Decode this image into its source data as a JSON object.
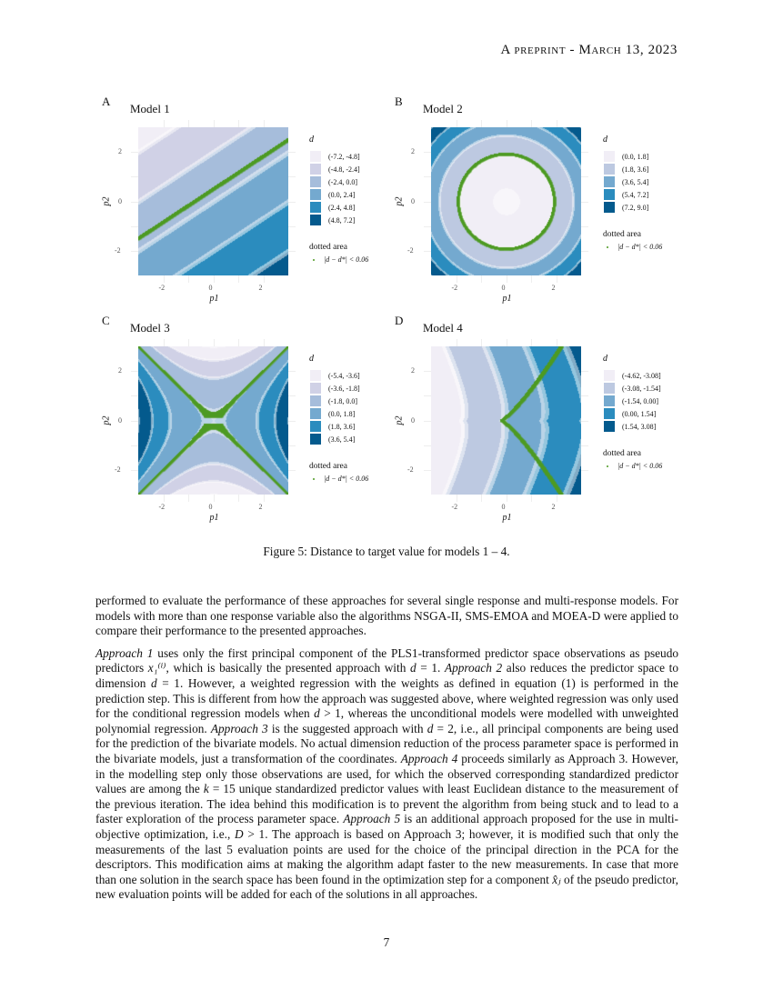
{
  "header": "A preprint - March 13, 2023",
  "figure": {
    "caption": "Figure 5: Distance to target value for models 1 – 4."
  },
  "chart_data": [
    {
      "type": "heatmap",
      "panel": "A",
      "title": "Model 1",
      "xlabel": "p1",
      "ylabel": "p2",
      "xlim": [
        -3,
        3
      ],
      "ylim": [
        -3,
        3
      ],
      "xticks": [
        "-2",
        "0",
        "2"
      ],
      "yticks": [
        "2",
        "0",
        "-2"
      ],
      "legend_title": "d",
      "bins": [
        "(-7.2, -4.8]",
        "(-4.8, -2.4]",
        "(-2.4, 0.0]",
        "(0.0, 2.4]",
        "(2.4, 4.8]",
        "(4.8, 7.2]"
      ],
      "colors": [
        "#f1eef6",
        "#d0d1e6",
        "#a6bddb",
        "#74a9cf",
        "#2b8cbe",
        "#045a8d"
      ],
      "dotted_title": "dotted area",
      "dotted_label": "|d − d*| < 0.06",
      "dot_color": "#4d9a22",
      "grid": true,
      "legend_placement": "right"
    },
    {
      "type": "heatmap",
      "panel": "B",
      "title": "Model 2",
      "xlabel": "p1",
      "ylabel": "p2",
      "xlim": [
        -3,
        3
      ],
      "ylim": [
        -3,
        3
      ],
      "xticks": [
        "-2",
        "0",
        "2"
      ],
      "yticks": [
        "2",
        "0",
        "-2"
      ],
      "legend_title": "d",
      "bins": [
        "(0.0, 1.8]",
        "(1.8, 3.6]",
        "(3.6, 5.4]",
        "(5.4, 7.2]",
        "(7.2, 9.0]"
      ],
      "colors": [
        "#f1eef6",
        "#bdc9e1",
        "#74a9cf",
        "#2b8cbe",
        "#045a8d"
      ],
      "dotted_title": "dotted area",
      "dotted_label": "|d − d*| < 0.06",
      "dot_color": "#4d9a22",
      "grid": true,
      "legend_placement": "right"
    },
    {
      "type": "heatmap",
      "panel": "C",
      "title": "Model 3",
      "xlabel": "p1",
      "ylabel": "p2",
      "xlim": [
        -3,
        3
      ],
      "ylim": [
        -3,
        3
      ],
      "xticks": [
        "-2",
        "0",
        "2"
      ],
      "yticks": [
        "2",
        "0",
        "-2"
      ],
      "legend_title": "d",
      "bins": [
        "(-5.4, -3.6]",
        "(-3.6, -1.8]",
        "(-1.8, 0.0]",
        "(0.0, 1.8]",
        "(1.8, 3.6]",
        "(3.6, 5.4]"
      ],
      "colors": [
        "#f1eef6",
        "#d0d1e6",
        "#a6bddb",
        "#74a9cf",
        "#2b8cbe",
        "#045a8d"
      ],
      "dotted_title": "dotted area",
      "dotted_label": "|d − d*| < 0.06",
      "dot_color": "#4d9a22",
      "grid": true,
      "legend_placement": "right"
    },
    {
      "type": "heatmap",
      "panel": "D",
      "title": "Model 4",
      "xlabel": "p1",
      "ylabel": "p2",
      "xlim": [
        -3,
        3
      ],
      "ylim": [
        -3,
        3
      ],
      "xticks": [
        "-2",
        "0",
        "2"
      ],
      "yticks": [
        "2",
        "0",
        "-2"
      ],
      "legend_title": "d",
      "bins": [
        "(-4.62, -3.08]",
        "(-3.08, -1.54]",
        "(-1.54, 0.00]",
        "(0.00, 1.54]",
        "(1.54, 3.08]"
      ],
      "colors": [
        "#f1eef6",
        "#bdc9e1",
        "#74a9cf",
        "#2b8cbe",
        "#045a8d"
      ],
      "dotted_title": "dotted area",
      "dotted_label": "|d − d*| < 0.06",
      "dot_color": "#4d9a22",
      "grid": true,
      "legend_placement": "right"
    }
  ],
  "body": {
    "paragraphs": [
      [
        {
          "t": "performed to evaluate the performance of these approaches for several single response and multi-response models. For models with more than one response variable also the algorithms NSGA-II, SMS-EMOA and MOEA-D were applied to compare their performance to the presented approaches."
        }
      ],
      [
        {
          "t": "Approach 1",
          "i": true
        },
        {
          "t": " uses only the first principal component of the PLS1-transformed predictor space observations as pseudo predictors "
        },
        {
          "t": "x₁⁽ⁱ⁾",
          "i": true
        },
        {
          "t": ", which is basically the presented approach with "
        },
        {
          "t": "d",
          "i": true
        },
        {
          "t": " = 1. "
        },
        {
          "t": "Approach 2",
          "i": true
        },
        {
          "t": " also reduces the predictor space to dimension "
        },
        {
          "t": "d",
          "i": true
        },
        {
          "t": " = 1.  However, a weighted regression with the weights as defined in equation (1) is performed in the prediction step.  This is different from how the approach was suggested above, where weighted regression was only used for the conditional regression models when "
        },
        {
          "t": "d",
          "i": true
        },
        {
          "t": " > 1, whereas the unconditional models were modelled with unweighted polynomial regression. "
        },
        {
          "t": "Approach 3",
          "i": true
        },
        {
          "t": " is the suggested approach with "
        },
        {
          "t": "d",
          "i": true
        },
        {
          "t": " = 2, i.e., all principal components are being used for the prediction of the bivariate models. No actual dimension reduction of the process parameter space is performed in the bivariate models, just a transformation of the coordinates. "
        },
        {
          "t": "Approach 4",
          "i": true
        },
        {
          "t": " proceeds similarly as Approach 3. However, in the modelling step only those observations are used, for which the observed corresponding standardized predictor values are among the "
        },
        {
          "t": "k",
          "i": true
        },
        {
          "t": " = 15 unique standardized predictor values with least Euclidean distance to the measurement of the previous iteration. The idea behind this modification is to prevent the algorithm from being stuck and to lead to a faster exploration of the process parameter space. "
        },
        {
          "t": "Approach 5",
          "i": true
        },
        {
          "t": " is an additional approach proposed for the use in multi-objective optimization, i.e., "
        },
        {
          "t": "D",
          "i": true
        },
        {
          "t": " > 1. The approach is based on Approach 3; however, it is modified such that only the measurements of the last 5 evaluation points are used for the choice of the principal direction in the PCA for the descriptors. This modification aims at making the algorithm adapt faster to the new measurements. In case that more than one solution in the search space has been found in the optimization step for a component "
        },
        {
          "t": "x̂ⱼ",
          "i": true
        },
        {
          "t": " of the pseudo predictor, new evaluation points will be added for each of the solutions in all approaches."
        }
      ]
    ]
  },
  "page_number": "7"
}
